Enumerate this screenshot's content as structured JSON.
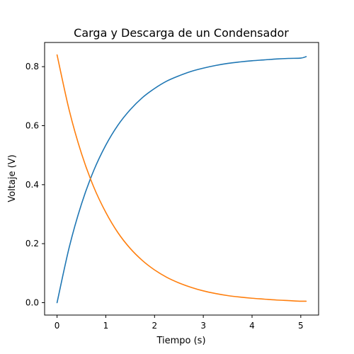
{
  "chart_data": {
    "type": "line",
    "title": "Carga y Descarga de un Condensador",
    "xlabel": "Tiempo (s)",
    "ylabel": "Voltaje (V)",
    "xlim": [
      -0.2555,
      5.3655
    ],
    "ylim": [
      -0.042,
      0.882
    ],
    "xticks": [
      0,
      1,
      2,
      3,
      4,
      5
    ],
    "xtick_labels": [
      "0",
      "1",
      "2",
      "3",
      "4",
      "5"
    ],
    "yticks": [
      0.0,
      0.2,
      0.4,
      0.6,
      0.8
    ],
    "ytick_labels": [
      "0.0",
      "0.2",
      "0.4",
      "0.6",
      "0.8"
    ],
    "grid": false,
    "legend": false,
    "series": [
      {
        "color": "#1f77b4",
        "x": [
          0,
          0.25,
          0.5,
          0.75,
          1.0,
          1.25,
          1.5,
          1.75,
          2.0,
          2.25,
          2.5,
          2.75,
          3.0,
          3.25,
          3.5,
          3.75,
          4.0,
          4.25,
          4.5,
          4.75,
          5.0,
          5.11
        ],
        "y": [
          0.0,
          0.188,
          0.334,
          0.447,
          0.534,
          0.602,
          0.654,
          0.695,
          0.726,
          0.751,
          0.769,
          0.784,
          0.795,
          0.804,
          0.811,
          0.816,
          0.82,
          0.823,
          0.826,
          0.828,
          0.829,
          0.834
        ]
      },
      {
        "color": "#ff7f0e",
        "x": [
          0,
          0.25,
          0.5,
          0.75,
          1.0,
          1.25,
          1.5,
          1.75,
          2.0,
          2.25,
          2.5,
          2.75,
          3.0,
          3.25,
          3.5,
          3.75,
          4.0,
          4.25,
          4.5,
          4.75,
          5.0,
          5.11
        ],
        "y": [
          0.84,
          0.652,
          0.506,
          0.393,
          0.306,
          0.237,
          0.184,
          0.143,
          0.111,
          0.086,
          0.067,
          0.052,
          0.04,
          0.031,
          0.024,
          0.019,
          0.015,
          0.012,
          0.009,
          0.007,
          0.005,
          0.005
        ]
      }
    ]
  }
}
